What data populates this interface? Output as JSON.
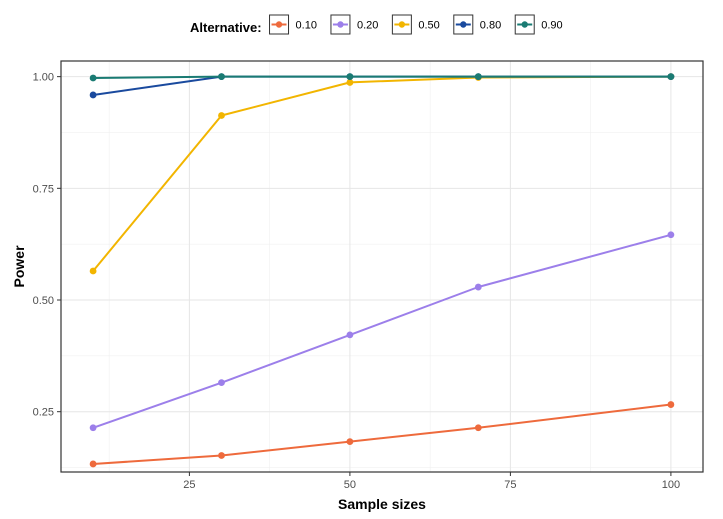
{
  "chart_data": {
    "type": "line",
    "xlabel": "Sample sizes",
    "ylabel": "Power",
    "xlim": [
      5,
      105
    ],
    "ylim": [
      0.115,
      1.035
    ],
    "x_ticks": [
      25,
      50,
      75,
      100
    ],
    "y_ticks": [
      0.25,
      0.5,
      0.75,
      1.0
    ],
    "y_tick_labels": [
      "0.25",
      "0.50",
      "0.75",
      "1.00"
    ],
    "grid": true,
    "legend": {
      "title": "Alternative:",
      "placement": "top"
    },
    "x": [
      10,
      30,
      50,
      70,
      100
    ],
    "series": [
      {
        "name": "0.10",
        "color": "#EE6A3C",
        "values": [
          0.133,
          0.152,
          0.183,
          0.214,
          0.266
        ]
      },
      {
        "name": "0.20",
        "color": "#9C7FEA",
        "values": [
          0.214,
          0.315,
          0.422,
          0.529,
          0.646
        ]
      },
      {
        "name": "0.50",
        "color": "#F2B500",
        "values": [
          0.565,
          0.913,
          0.987,
          0.998,
          1.0
        ]
      },
      {
        "name": "0.80",
        "color": "#1A4A9E",
        "values": [
          0.959,
          1.0,
          1.0,
          1.0,
          1.0
        ]
      },
      {
        "name": "0.90",
        "color": "#1A7B73",
        "values": [
          0.997,
          1.0,
          1.0,
          1.0,
          1.0
        ]
      }
    ]
  }
}
